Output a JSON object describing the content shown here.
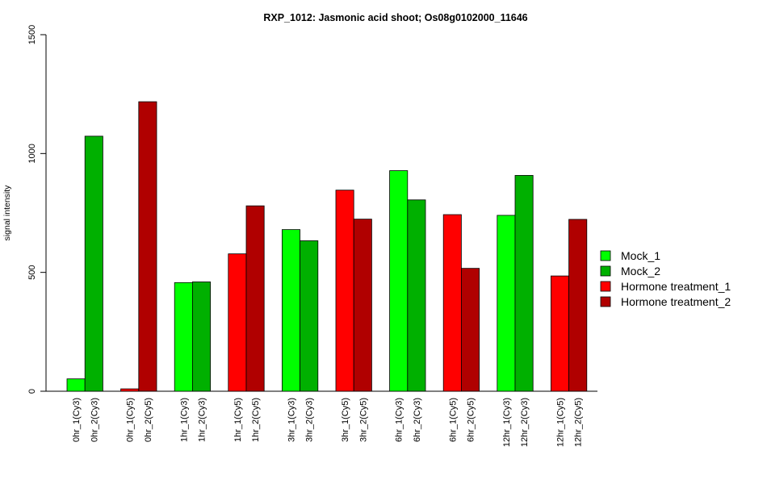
{
  "chart_data": {
    "type": "bar",
    "title": "RXP_1012: Jasmonic acid shoot; Os08g0102000_11646",
    "xlabel": "",
    "ylabel": "signal intensity",
    "ylim": [
      0,
      1500
    ],
    "yticks": [
      0,
      500,
      1000,
      1500
    ],
    "grid": false,
    "legend_position": "right",
    "categories": [
      "0hr_1(Cy3)",
      "0hr_2(Cy3)",
      "0hr_1(Cy5)",
      "0hr_2(Cy5)",
      "1hr_1(Cy3)",
      "1hr_2(Cy3)",
      "1hr_1(Cy5)",
      "1hr_2(Cy5)",
      "3hr_1(Cy3)",
      "3hr_2(Cy3)",
      "3hr_1(Cy5)",
      "3hr_2(Cy5)",
      "6hr_1(Cy3)",
      "6hr_2(Cy3)",
      "6hr_1(Cy5)",
      "6hr_2(Cy5)",
      "12hr_1(Cy3)",
      "12hr_2(Cy3)",
      "12hr_1(Cy5)",
      "12hr_2(Cy5)"
    ],
    "values": [
      52,
      1073,
      10,
      1218,
      457,
      460,
      578,
      780,
      680,
      633,
      846,
      724,
      928,
      805,
      743,
      517,
      740,
      908,
      485,
      723
    ],
    "bar_series": [
      0,
      1,
      2,
      3,
      0,
      1,
      2,
      3,
      0,
      1,
      2,
      3,
      0,
      1,
      2,
      3,
      0,
      1,
      2,
      3
    ],
    "series": [
      {
        "name": "Mock_1",
        "color": "#00ff00"
      },
      {
        "name": "Mock_2",
        "color": "#00b000"
      },
      {
        "name": "Hormone treatment_1",
        "color": "#ff0000"
      },
      {
        "name": "Hormone treatment_2",
        "color": "#b00000"
      }
    ]
  }
}
